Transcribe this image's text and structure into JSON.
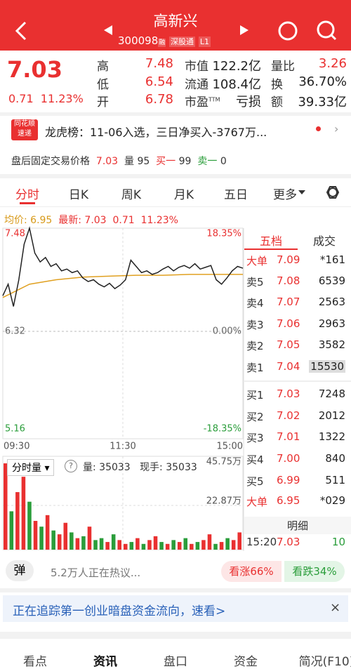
{
  "header": {
    "title": "高新兴",
    "code": "300098",
    "badges": [
      "融",
      "深股通",
      "L1"
    ]
  },
  "quote": {
    "price": "7.03",
    "change": "0.71",
    "pct": "11.23%",
    "stats": [
      {
        "label": "高",
        "value": "7.48"
      },
      {
        "label": "市值",
        "value": "122.2亿"
      },
      {
        "label": "量比",
        "value": "3.26"
      },
      {
        "label": "低",
        "value": "6.54"
      },
      {
        "label": "流通",
        "value": "108.4亿"
      },
      {
        "label": "换",
        "value": "36.70%"
      },
      {
        "label": "开",
        "value": "6.78"
      },
      {
        "label": "市盈",
        "sup": "TTM",
        "value": "亏损"
      },
      {
        "label": "额",
        "value": "39.33亿"
      }
    ]
  },
  "news": {
    "badge": [
      "同花顺",
      "速递"
    ],
    "text": "龙虎榜：11-06入选，三日净买入-3767万..."
  },
  "after_hours": {
    "label": "盘后固定交易价格",
    "price": "7.03",
    "vol_label": "量",
    "vol": "95",
    "buy_label": "买一",
    "buy": "99",
    "sell_label": "卖一",
    "sell": "0"
  },
  "tabs": [
    "分时",
    "日K",
    "周K",
    "月K",
    "五日",
    "更多"
  ],
  "chart": {
    "avg_label": "均价: 6.95",
    "last_label": "最新: 7.03",
    "change": "0.71",
    "pct": "11.23%",
    "left_axis": [
      "7.48",
      "6.32",
      "5.16"
    ],
    "right_axis": [
      "18.35%",
      "0.00%",
      "-18.35%"
    ],
    "times": [
      "09:30",
      "11:30",
      "15:00"
    ],
    "price": [
      6.72,
      6.85,
      6.6,
      6.9,
      7.3,
      7.48,
      7.2,
      7.1,
      7.15,
      7.05,
      7.08,
      7.0,
      7.02,
      6.98,
      7.0,
      6.92,
      6.88,
      6.9,
      6.85,
      6.82,
      6.86,
      6.8,
      6.84,
      6.9,
      7.12,
      7.05,
      6.98,
      7.0,
      6.96,
      6.98,
      7.02,
      7.05,
      7.0,
      7.04,
      7.06,
      7.03,
      7.08,
      7.02,
      7.04,
      7.06,
      6.9,
      6.85,
      6.92,
      7.0,
      7.05,
      7.03
    ],
    "avg": [
      6.7,
      6.85,
      6.9,
      6.93,
      6.94,
      6.95,
      6.95,
      6.96,
      6.96,
      6.96
    ],
    "vol_title": "分时量",
    "vol_label": "量: 35033",
    "hand_label": "现手: 35033",
    "vol_axis": [
      "45.75万",
      "22.87万"
    ],
    "volume": [
      45,
      20,
      30,
      38,
      25,
      15,
      12,
      18,
      10,
      8,
      14,
      9,
      6,
      7,
      12,
      5,
      6,
      4,
      8,
      5,
      3,
      4,
      6,
      3,
      5,
      7,
      4,
      3,
      5,
      4,
      6,
      3,
      4,
      5,
      8,
      3,
      4,
      6,
      5,
      9
    ],
    "volume_colors": [
      "#e93030",
      "#2a9d3a",
      "#e93030",
      "#e93030",
      "#2a9d3a",
      "#e93030",
      "#2a9d3a",
      "#e93030",
      "#2a9d3a",
      "#e93030",
      "#e93030",
      "#2a9d3a",
      "#e93030",
      "#2a9d3a",
      "#e93030",
      "#2a9d3a",
      "#2a9d3a",
      "#e93030",
      "#2a9d3a",
      "#e93030",
      "#e93030",
      "#2a9d3a",
      "#e93030",
      "#2a9d3a",
      "#e93030",
      "#e93030",
      "#2a9d3a",
      "#e93030",
      "#2a9d3a",
      "#e93030",
      "#2a9d3a",
      "#e93030",
      "#2a9d3a",
      "#e93030",
      "#e93030",
      "#2a9d3a",
      "#e93030",
      "#2a9d3a",
      "#e93030",
      "#e93030"
    ]
  },
  "book": {
    "tabs": [
      "五档",
      "成交"
    ],
    "rows": [
      [
        "大单",
        "7.09",
        "*161"
      ],
      [
        "卖5",
        "7.08",
        "6539"
      ],
      [
        "卖4",
        "7.07",
        "2563"
      ],
      [
        "卖3",
        "7.06",
        "2963"
      ],
      [
        "卖2",
        "7.05",
        "3582"
      ],
      [
        "卖1",
        "7.04",
        "15530"
      ],
      [
        "买1",
        "7.03",
        "7248"
      ],
      [
        "买2",
        "7.02",
        "2012"
      ],
      [
        "买3",
        "7.01",
        "1322"
      ],
      [
        "买4",
        "7.00",
        "840"
      ],
      [
        "买5",
        "6.99",
        "511"
      ],
      [
        "大单",
        "6.95",
        "*029"
      ]
    ],
    "detail": "明细",
    "tick": [
      "15:20",
      "7.03",
      "10"
    ]
  },
  "social": {
    "icon": "弹",
    "text": "5.2万人正在热议...",
    "up": "看涨66%",
    "down": "看跌34%"
  },
  "banner": "正在追踪第一创业暗盘资金流向，速看>",
  "nav": [
    "看点",
    "资讯",
    "盘口",
    "资金",
    "简况(F10)"
  ]
}
